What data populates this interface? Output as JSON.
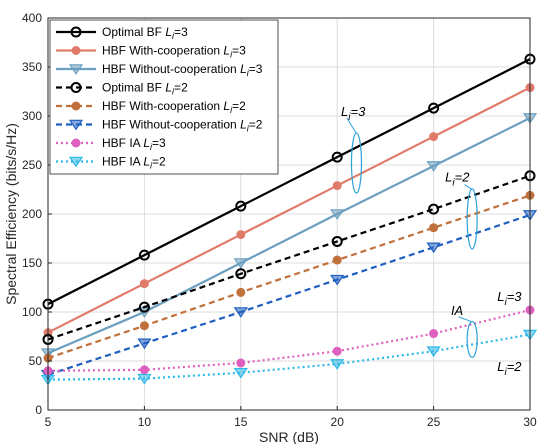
{
  "chart_data": {
    "type": "line",
    "xlabel": "SNR (dB)",
    "ylabel": "Spectral Efficiency (bits/s/Hz)",
    "xlim": [
      5,
      30
    ],
    "ylim": [
      0,
      400
    ],
    "xticks": [
      "5",
      "10",
      "15",
      "20",
      "25",
      "30"
    ],
    "yticks": [
      "0",
      "50",
      "100",
      "150",
      "200",
      "250",
      "300",
      "350",
      "400"
    ],
    "grid": true,
    "legend_position": "top-left",
    "x": [
      5,
      10,
      15,
      20,
      25,
      30
    ],
    "series": [
      {
        "name": "Optimal BF",
        "sub": "3",
        "values": [
          108,
          158,
          208,
          258,
          308,
          358
        ],
        "color": "#000000",
        "dash": "",
        "marker": "circle-open"
      },
      {
        "name": "HBF With-cooperation",
        "sub": "3",
        "values": [
          79,
          129,
          179,
          229,
          279,
          329
        ],
        "color": "#e07a6a",
        "dash": "",
        "marker": "circle-filled"
      },
      {
        "name": "HBF Without-cooperation",
        "sub": "3",
        "values": [
          58,
          100,
          150,
          200,
          249,
          298
        ],
        "color": "#6b9fbf",
        "dash": "",
        "marker": "triangle-down"
      },
      {
        "name": "Optimal BF",
        "sub": "2",
        "values": [
          72,
          105,
          139,
          172,
          205,
          239
        ],
        "color": "#000000",
        "dash": "6,4",
        "marker": "circle-open"
      },
      {
        "name": "HBF With-cooperation",
        "sub": "2",
        "values": [
          53,
          86,
          120,
          153,
          186,
          219
        ],
        "color": "#c0703a",
        "dash": "6,4",
        "marker": "circle-filled"
      },
      {
        "name": "HBF Without-cooperation",
        "sub": "2",
        "values": [
          36,
          68,
          100,
          133,
          166,
          199
        ],
        "color": "#1f5fbf",
        "dash": "6,4",
        "marker": "triangle-down"
      },
      {
        "name": "HBF IA",
        "sub": "3",
        "values": [
          40,
          41,
          48,
          60,
          78,
          102
        ],
        "color": "#e060c0",
        "dash": "2,3",
        "marker": "circle-filled"
      },
      {
        "name": "HBF IA",
        "sub": "2",
        "values": [
          31,
          32,
          38,
          47,
          60,
          77
        ],
        "color": "#2cb8e8",
        "dash": "2,3",
        "marker": "triangle-down"
      }
    ],
    "annotations": [
      {
        "text": "L",
        "sub": "i",
        "suffix": "=3",
        "target_x": 20.8,
        "target_y": 248
      },
      {
        "text": "L",
        "sub": "i",
        "suffix": "=2",
        "target_x": 27.0,
        "target_y": 193
      },
      {
        "text": "IA",
        "sub": "",
        "suffix": "",
        "target_x": 27.0,
        "target_y": 70
      },
      {
        "text": "L",
        "sub": "i",
        "suffix": "=3",
        "target_x": 27.0,
        "target_y": 80
      },
      {
        "text": "L",
        "sub": "i",
        "suffix": "=2",
        "target_x": 27.0,
        "target_y": 60
      }
    ],
    "legend_sub_prefix": "L",
    "legend_sub_index": "i",
    "legend_sub_eq": "="
  }
}
